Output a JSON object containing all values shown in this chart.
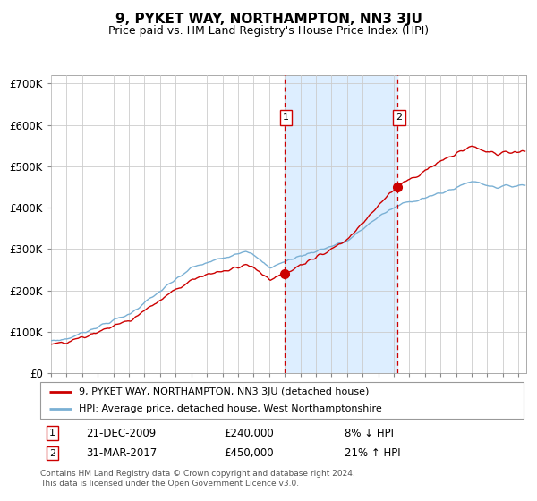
{
  "title": "9, PYKET WAY, NORTHAMPTON, NN3 3JU",
  "subtitle": "Price paid vs. HM Land Registry's House Price Index (HPI)",
  "title_fontsize": 11,
  "subtitle_fontsize": 9,
  "ylabel_ticks": [
    "£0",
    "£100K",
    "£200K",
    "£300K",
    "£400K",
    "£500K",
    "£600K",
    "£700K"
  ],
  "ytick_values": [
    0,
    100000,
    200000,
    300000,
    400000,
    500000,
    600000,
    700000
  ],
  "ylim": [
    0,
    720000
  ],
  "xlim_start": 1995.0,
  "xlim_end": 2025.5,
  "purchase1_date": 2009.97,
  "purchase1_price": 240000,
  "purchase1_label": "1",
  "purchase2_date": 2017.25,
  "purchase2_price": 450000,
  "purchase2_label": "2",
  "line1_color": "#cc0000",
  "line2_color": "#7ab0d4",
  "shading_color": "#ddeeff",
  "dashed_line_color": "#cc0000",
  "legend_line1": "9, PYKET WAY, NORTHAMPTON, NN3 3JU (detached house)",
  "legend_line2": "HPI: Average price, detached house, West Northamptonshire",
  "footer_text": "Contains HM Land Registry data © Crown copyright and database right 2024.\nThis data is licensed under the Open Government Licence v3.0.",
  "background_color": "#ffffff",
  "grid_color": "#cccccc",
  "box1_date": "21-DEC-2009",
  "box1_price": "£240,000",
  "box1_hpi": "8% ↓ HPI",
  "box2_date": "31-MAR-2017",
  "box2_price": "£450,000",
  "box2_hpi": "21% ↑ HPI"
}
